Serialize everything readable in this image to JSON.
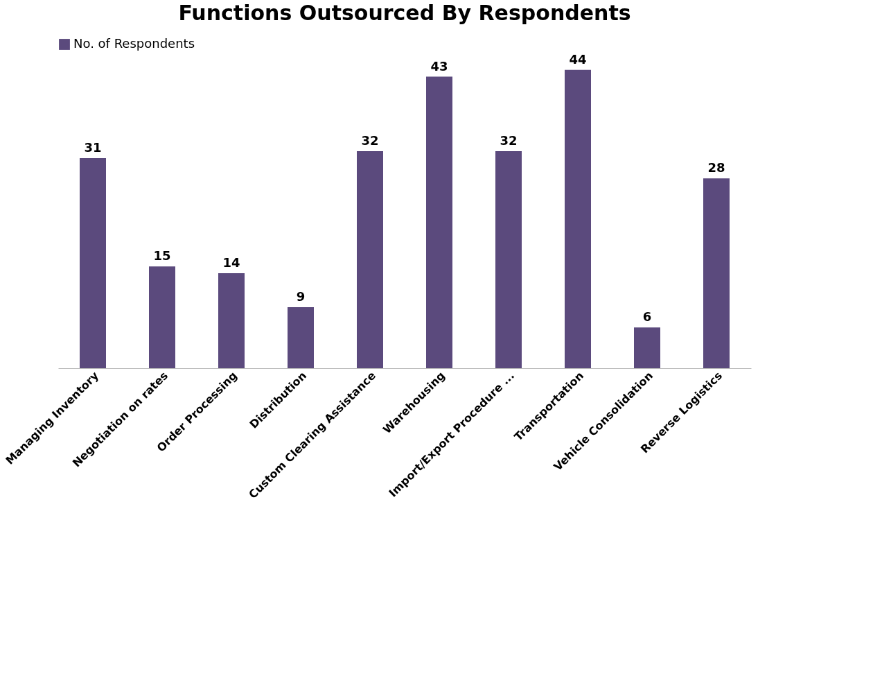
{
  "chart_data": {
    "type": "bar",
    "title": "Functions Outsourced By Respondents",
    "categories": [
      "Managing Inventory",
      "Negotiation on rates",
      "Order Processing",
      "Distribution",
      "Custom Clearing Assistance",
      "Warehousing",
      "Import/Export Procedure ...",
      "Transportation",
      "Vehicle Consolidation",
      "Reverse Logistics"
    ],
    "series": [
      {
        "name": "No. of Respondents",
        "color": "#5b4a7d",
        "values": [
          31,
          15,
          14,
          9,
          32,
          43,
          32,
          44,
          6,
          28
        ]
      }
    ],
    "data_labels": true,
    "legend": "top",
    "tick_labels": "x"
  }
}
